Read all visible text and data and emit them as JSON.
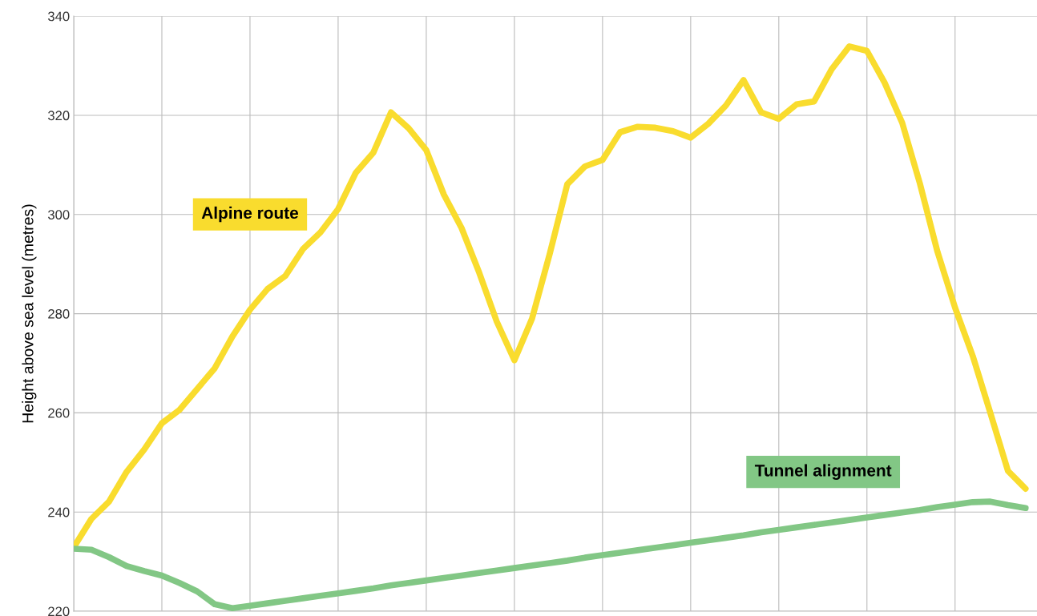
{
  "chart_data": {
    "type": "line",
    "ylabel": "Height above sea level (metres)",
    "ylim": [
      220,
      340
    ],
    "yticks": [
      220,
      240,
      260,
      280,
      300,
      320,
      340
    ],
    "categories": [
      null,
      null,
      null,
      null,
      null,
      null,
      null,
      null,
      null,
      null,
      null,
      null,
      null,
      null,
      null,
      null,
      null,
      null,
      null,
      null,
      null,
      null,
      null,
      null,
      null,
      null,
      null,
      null,
      null,
      null,
      null,
      null,
      null,
      null,
      null,
      null,
      null,
      null,
      null,
      null,
      null,
      null,
      null,
      null,
      null,
      null,
      null,
      null,
      null,
      null,
      null,
      null,
      null,
      null,
      null
    ],
    "tick_labels": "y",
    "grid": true,
    "legend": false,
    "marker": "none",
    "line_style": "solid",
    "series": [
      {
        "name": "Alpine route",
        "color": "#f9dc2e",
        "values": [
          232.9,
          238.6,
          242.1,
          248.1,
          252.6,
          257.9,
          260.6,
          264.8,
          269.0,
          275.4,
          280.8,
          285.0,
          287.6,
          293.0,
          296.4,
          301.1,
          308.4,
          312.5,
          320.6,
          317.4,
          313.0,
          304.0,
          297.3,
          288.3,
          278.4,
          270.6,
          279.0,
          292.0,
          306.1,
          309.7,
          311.0,
          316.6,
          317.7,
          317.5,
          316.8,
          315.5,
          318.3,
          322.0,
          327.1,
          320.6,
          319.3,
          322.2,
          322.8,
          329.3,
          333.9,
          333.0,
          326.6,
          318.5,
          306.3,
          292.5,
          281.2,
          271.5,
          260.0,
          248.3,
          244.7
        ]
      },
      {
        "name": "Tunnel alignment",
        "color": "#82c785",
        "values": [
          232.6,
          232.4,
          230.9,
          229.1,
          228.1,
          227.2,
          225.7,
          224.0,
          221.4,
          220.6,
          221.1,
          221.6,
          222.1,
          222.6,
          223.1,
          223.6,
          224.1,
          224.6,
          225.2,
          225.7,
          226.2,
          226.7,
          227.2,
          227.7,
          228.2,
          228.7,
          229.2,
          229.7,
          230.2,
          230.8,
          231.3,
          231.8,
          232.3,
          232.8,
          233.3,
          233.8,
          234.3,
          234.8,
          235.3,
          235.9,
          236.4,
          236.9,
          237.4,
          237.9,
          238.4,
          238.9,
          239.4,
          239.9,
          240.4,
          241.0,
          241.5,
          242.0,
          242.1,
          241.4,
          240.8
        ]
      }
    ]
  }
}
